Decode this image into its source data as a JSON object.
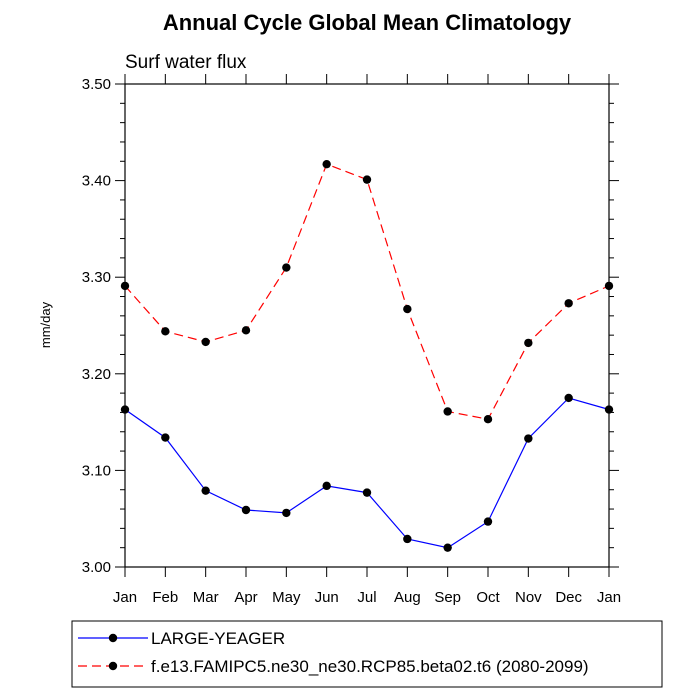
{
  "chart_data": {
    "type": "line",
    "title": "Annual Cycle Global Mean Climatology",
    "subtitle": "Surf water flux",
    "xlabel": "",
    "ylabel": "mm/day",
    "categories": [
      "Jan",
      "Feb",
      "Mar",
      "Apr",
      "May",
      "Jun",
      "Jul",
      "Aug",
      "Sep",
      "Oct",
      "Nov",
      "Dec",
      "Jan"
    ],
    "ylim": [
      3.0,
      3.5
    ],
    "yticks": [
      3.0,
      3.1,
      3.2,
      3.3,
      3.4,
      3.5
    ],
    "ytick_labels": [
      "3.00",
      "3.10",
      "3.20",
      "3.30",
      "3.40",
      "3.50"
    ],
    "grid": false,
    "legend_position": "bottom",
    "series": [
      {
        "name": "LARGE-YEAGER",
        "color": "#0000ff",
        "dash": "solid",
        "marker": "dot",
        "values": [
          3.163,
          3.134,
          3.079,
          3.059,
          3.056,
          3.084,
          3.077,
          3.029,
          3.02,
          3.047,
          3.133,
          3.175,
          3.163
        ]
      },
      {
        "name": "f.e13.FAMIPC5.ne30_ne30.RCP85.beta02.t6 (2080-2099)",
        "color": "#ff0000",
        "dash": "dashed",
        "marker": "dot",
        "values": [
          3.291,
          3.244,
          3.233,
          3.245,
          3.31,
          3.417,
          3.401,
          3.267,
          3.161,
          3.153,
          3.232,
          3.273,
          3.291
        ]
      }
    ]
  }
}
